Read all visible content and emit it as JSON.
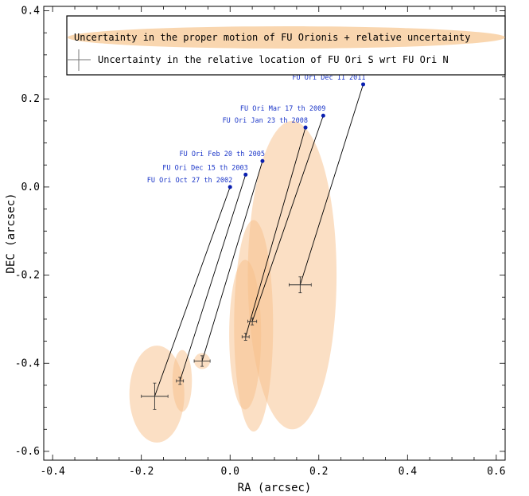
{
  "chart_data": {
    "type": "scatter",
    "title": "",
    "xlabel": "RA (arcsec)",
    "ylabel": "DEC (arcsec)",
    "xlim": [
      -0.42,
      0.62
    ],
    "ylim": [
      -0.62,
      0.41
    ],
    "xticks": [
      -0.4,
      -0.2,
      0.0,
      0.2,
      0.4,
      0.6
    ],
    "xtick_labels": [
      "-0.4",
      "-0.2",
      "0.0",
      "0.2",
      "0.4",
      "0.6"
    ],
    "yticks": [
      -0.6,
      -0.4,
      -0.2,
      0.0,
      0.2,
      0.4
    ],
    "ytick_labels": [
      "-0.6",
      "-0.4",
      "-0.2",
      "0.0",
      "0.2",
      "0.4"
    ],
    "grid": false,
    "legend_position": "top",
    "legend": [
      {
        "label": "Uncertainty in the proper motion of FU Orionis + relative uncertainty",
        "marker": "ellipse"
      },
      {
        "label": "Uncertainty in the relative location of FU Ori S wrt FU Ori N",
        "marker": "cross"
      }
    ],
    "series": [
      {
        "name": "FU Ori N",
        "color": "#0a1fb0",
        "points": [
          {
            "label": "FU Ori Oct 27 th 2002",
            "x": 0.0,
            "y": 0.0
          },
          {
            "label": "FU Ori Dec 15 th 2003",
            "x": 0.035,
            "y": 0.028
          },
          {
            "label": "FU Ori Feb 20 th 2005",
            "x": 0.073,
            "y": 0.059
          },
          {
            "label": "FU Ori Jan 23 th 2008",
            "x": 0.17,
            "y": 0.135
          },
          {
            "label": "FU Ori Mar 17 th 2009",
            "x": 0.21,
            "y": 0.162
          },
          {
            "label": "FU Ori Dec 11 2011",
            "x": 0.3,
            "y": 0.233
          }
        ]
      },
      {
        "name": "FU Ori S",
        "color": "#000000",
        "points": [
          {
            "x": -0.17,
            "y": -0.475,
            "xerr": 0.03,
            "yerr": 0.03
          },
          {
            "x": -0.113,
            "y": -0.44,
            "xerr": 0.008,
            "yerr": 0.008
          },
          {
            "x": -0.063,
            "y": -0.395,
            "xerr": 0.018,
            "yerr": 0.012
          },
          {
            "x": 0.035,
            "y": -0.34,
            "xerr": 0.008,
            "yerr": 0.008
          },
          {
            "x": 0.05,
            "y": -0.305,
            "xerr": 0.01,
            "yerr": 0.008
          },
          {
            "x": 0.158,
            "y": -0.222,
            "xerr": 0.025,
            "yerr": 0.018
          }
        ]
      }
    ],
    "uncertainty_ellipses": [
      {
        "cx": -0.165,
        "cy": -0.47,
        "rx": 0.062,
        "ry": 0.11
      },
      {
        "cx": -0.108,
        "cy": -0.44,
        "rx": 0.022,
        "ry": 0.07
      },
      {
        "cx": -0.063,
        "cy": -0.395,
        "rx": 0.018,
        "ry": 0.018
      },
      {
        "cx": 0.034,
        "cy": -0.335,
        "rx": 0.036,
        "ry": 0.17
      },
      {
        "cx": 0.053,
        "cy": -0.315,
        "rx": 0.044,
        "ry": 0.24
      },
      {
        "cx": 0.14,
        "cy": -0.2,
        "rx": 0.1,
        "ry": 0.35
      }
    ]
  }
}
